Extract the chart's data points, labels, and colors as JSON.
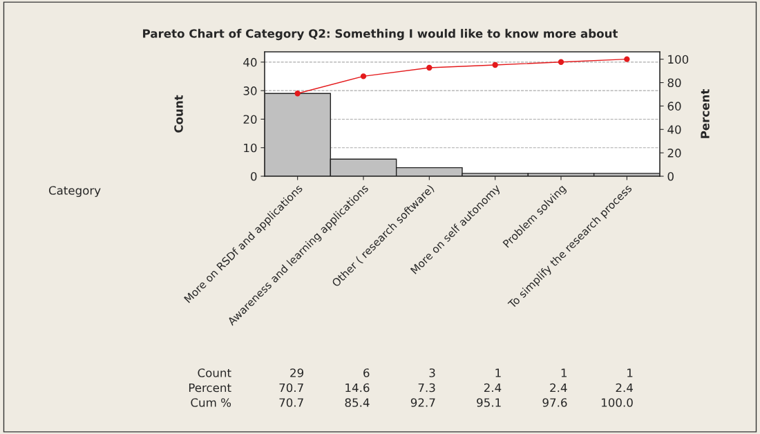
{
  "chart_data": {
    "type": "bar",
    "title": "Pareto Chart of Category Q2: Something I would like to know more about",
    "ylabel": "Count",
    "y2label": "Percent",
    "categories": [
      "More on RSDf and applications",
      "Awareness and learning applications",
      "Other ( research software)",
      "More on self autonomy",
      "Problem solving",
      "To simplify the research process"
    ],
    "series": [
      {
        "color": "#c0c0c0",
        "values": [
          29,
          6,
          3,
          1,
          1,
          1
        ]
      },
      {
        "type": "line",
        "axis": "y2",
        "color": "#e41a1c",
        "values": [
          70.7,
          85.4,
          92.7,
          95.1,
          97.6,
          100.0
        ]
      }
    ],
    "annotations": [
      "Category",
      "Count",
      "29",
      "6",
      "3",
      "1",
      "1",
      "1",
      "Percent",
      "70.7",
      "14.6",
      "7.3",
      "2.4",
      "2.4",
      "2.4",
      "Cum %",
      "70.7",
      "85.4",
      "92.7",
      "95.1",
      "97.6",
      "100.0"
    ],
    "ylim": [
      0,
      43.6
    ],
    "yticks": [
      0,
      10,
      20,
      30,
      40
    ],
    "y2lim": [
      0,
      106.3
    ],
    "y2ticks": [
      0,
      20,
      40,
      60,
      80,
      100
    ],
    "grid": "y",
    "marker": "circle",
    "line_style": "solid"
  }
}
